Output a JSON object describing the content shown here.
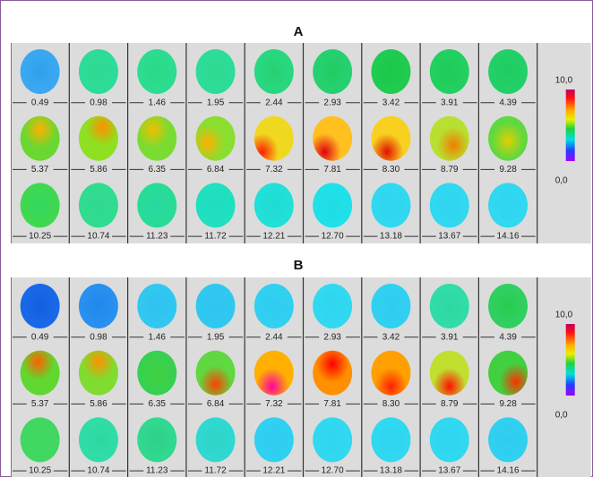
{
  "panels": [
    {
      "title": "A",
      "labels": [
        "0.49",
        "0.98",
        "1.46",
        "1.95",
        "2.44",
        "2.93",
        "3.42",
        "3.91",
        "4.39",
        "5.37",
        "5.86",
        "6.35",
        "6.84",
        "7.32",
        "7.81",
        "8.30",
        "8.79",
        "9.28",
        "10.25",
        "10.74",
        "11.23",
        "11.72",
        "12.21",
        "12.70",
        "13.18",
        "13.67",
        "14.16"
      ],
      "colorbar": {
        "max": "10,0",
        "min": "0,0"
      }
    },
    {
      "title": "B",
      "labels": [
        "0.49",
        "0.98",
        "1.46",
        "1.95",
        "2.44",
        "2.93",
        "3.42",
        "3.91",
        "4.39",
        "5.37",
        "5.86",
        "6.35",
        "6.84",
        "7.32",
        "7.81",
        "8.30",
        "8.79",
        "9.28",
        "10.25",
        "10.74",
        "11.23",
        "11.72",
        "12.21",
        "12.70",
        "13.18",
        "13.67",
        "14.16"
      ],
      "colorbar": {
        "max": "10,0",
        "min": "0,0"
      }
    }
  ]
}
